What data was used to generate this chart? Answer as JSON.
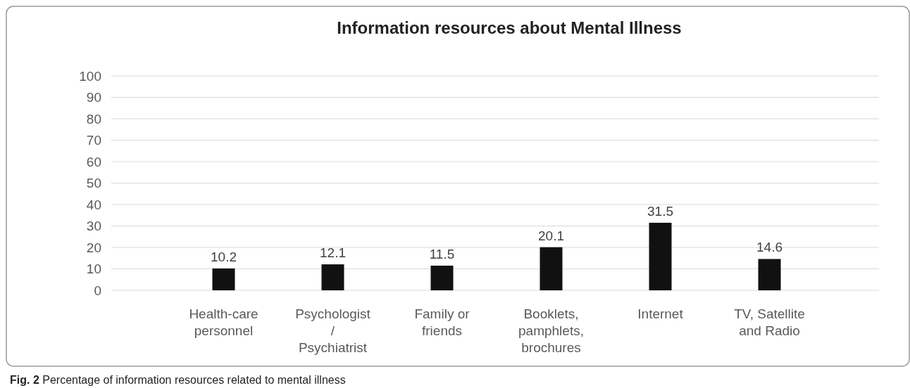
{
  "chart_data": {
    "type": "bar",
    "title": "Information resources about Mental Illness",
    "categories": [
      "Health-care personnel",
      "Psychologist / Psychiatrist",
      "Family or friends",
      "Booklets, pamphlets, brochures",
      "Internet",
      "TV, Satellite and Radio"
    ],
    "values": [
      10.2,
      12.1,
      11.5,
      20.1,
      31.5,
      14.6
    ],
    "color": "#111111",
    "ylim": [
      0,
      100
    ],
    "yticks": [
      0,
      10,
      20,
      30,
      40,
      50,
      60,
      70,
      80,
      90,
      100
    ],
    "grid": "y",
    "data_labels": true,
    "annotations": [
      "Fig. 2 Percentage of information resources related to mental illness"
    ]
  }
}
